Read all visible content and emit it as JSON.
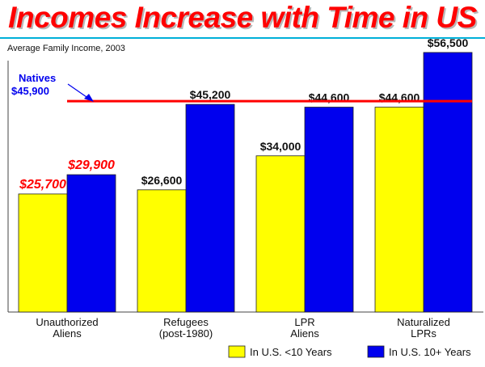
{
  "title": "Incomes Increase with Time in US",
  "subtitle": "Average Family Income, 2003",
  "chart_data": {
    "type": "bar",
    "categories": [
      [
        "Unauthorized",
        "Aliens"
      ],
      [
        "Refugees",
        "(post-1980)"
      ],
      [
        "LPR",
        "Aliens"
      ],
      [
        "Naturalized",
        "LPRs"
      ]
    ],
    "series": [
      {
        "name": "In U.S. <10 Years",
        "color": "#ffff00",
        "values": [
          25700,
          26600,
          34000,
          44600
        ],
        "labels": [
          "$25,700",
          "$26,600",
          "$34,000",
          "$44,600"
        ]
      },
      {
        "name": "In U.S. 10+ Years",
        "color": "#0000ee",
        "values": [
          29900,
          45200,
          44600,
          56500
        ],
        "labels": [
          "$29,900",
          "$45,200",
          "$44,600",
          "$56,500"
        ]
      }
    ],
    "highlight_color": "#ff0000",
    "highlight_category": 0,
    "reference_line": {
      "value": 45900,
      "label": [
        "Natives",
        "$45,900"
      ],
      "color": "#ff0000",
      "label_color": "#0000ee"
    },
    "ylim": [
      0,
      60000
    ],
    "grid": false,
    "legend_position": "bottom-right",
    "xlabel": "",
    "ylabel": ""
  }
}
